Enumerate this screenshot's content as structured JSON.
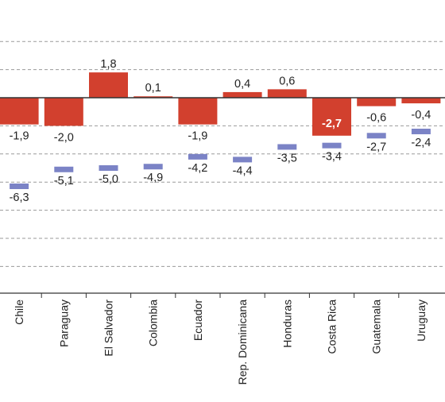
{
  "chart_data": {
    "type": "bar",
    "title": "",
    "xlabel": "",
    "ylabel": "",
    "ylim": [
      -10.5,
      3.5
    ],
    "grid": true,
    "categories": [
      "Chile",
      "Paraguay",
      "El Salvador",
      "Colombia",
      "Ecuador",
      "Rep. Dominicana",
      "Honduras",
      "Costa Rica",
      "Guatemala",
      "Uruguay"
    ],
    "series": [
      {
        "values": [
          -1.9,
          -2.0,
          1.8,
          0.1,
          -1.9,
          0.4,
          0.6,
          -2.7,
          -0.6,
          -0.4
        ],
        "labels": [
          "-1,9",
          "-2,0",
          "1,8",
          "0,1",
          "-1,9",
          "0,4",
          "0,6",
          "-2,7",
          "-0,6",
          "-0,4"
        ],
        "highlight_index": 7,
        "color": "#d2402e"
      },
      {
        "values": [
          -6.3,
          -5.1,
          -5.0,
          -4.9,
          -4.2,
          -4.4,
          -3.5,
          -3.4,
          -2.7,
          -2.4
        ],
        "labels": [
          "-6,3",
          "-5,1",
          "-5,0",
          "-4,9",
          "-4,2",
          "-4,4",
          "-3,5",
          "-3,4",
          "-2,7",
          "-2,4"
        ],
        "color": "#7b83c6"
      }
    ]
  }
}
